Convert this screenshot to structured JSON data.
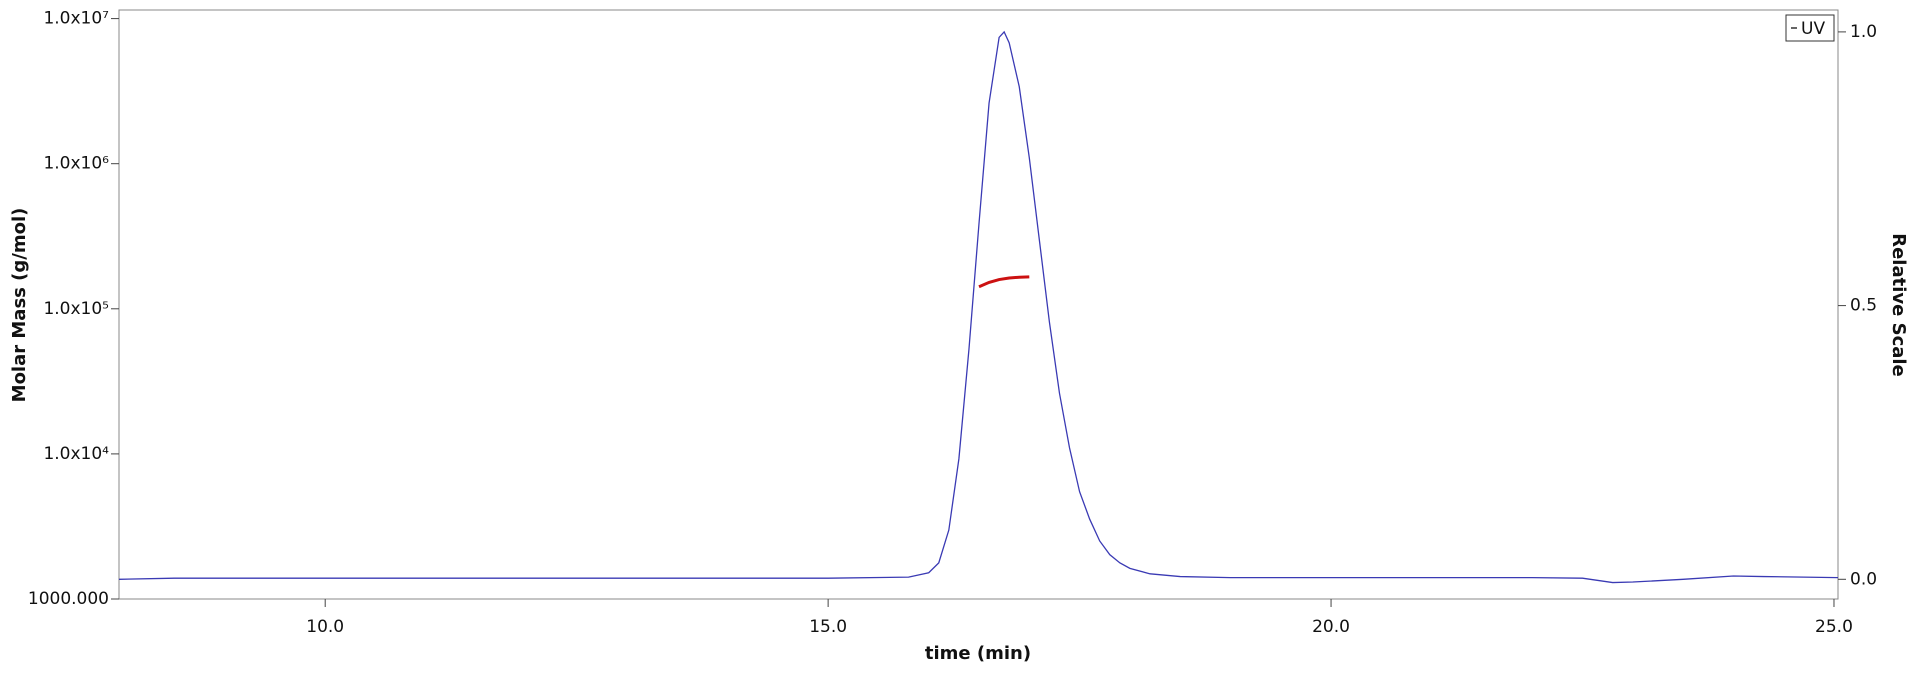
{
  "chart_data": {
    "type": "line",
    "xlabel": "time (min)",
    "ylabel": "Molar Mass (g/mol)",
    "y2label": "Relative Scale",
    "xlim": [
      7.95,
      25.04
    ],
    "xticks": [
      {
        "value": 10,
        "label": "10.0"
      },
      {
        "value": 15,
        "label": "15.0"
      },
      {
        "value": 20,
        "label": "20.0"
      },
      {
        "value": 25,
        "label": "25.0"
      }
    ],
    "ylim": [
      1000,
      11460000
    ],
    "ylog": true,
    "yticks": [
      {
        "value": 1000,
        "label": "1000.000"
      },
      {
        "value": 10000,
        "label": "1.0x10⁴"
      },
      {
        "value": 100000,
        "label": "1.0x10⁵"
      },
      {
        "value": 1000000,
        "label": "1.0x10⁶"
      },
      {
        "value": 10000000,
        "label": "1.0x10⁷"
      }
    ],
    "y2lim": [
      -0.036,
      1.04
    ],
    "y2ticks": [
      {
        "value": 0,
        "label": "0.0"
      },
      {
        "value": 0.5,
        "label": "0.5"
      },
      {
        "value": 1,
        "label": "1.0"
      }
    ],
    "legend": "upper right",
    "series": [
      {
        "name": "UV",
        "color": "#3a3ab4",
        "axis": "y2",
        "x": [
          7.95,
          8.5,
          15.0,
          15.8,
          16.0,
          16.1,
          16.2,
          16.3,
          16.4,
          16.5,
          16.6,
          16.7,
          16.75,
          16.8,
          16.9,
          17.0,
          17.1,
          17.2,
          17.3,
          17.4,
          17.5,
          17.6,
          17.7,
          17.8,
          17.9,
          18.0,
          18.2,
          18.5,
          19.0,
          22.0,
          22.5,
          22.8,
          23.0,
          23.5,
          24.0,
          24.3,
          25.04
        ],
        "values": [
          0.0,
          0.002,
          0.002,
          0.004,
          0.012,
          0.03,
          0.09,
          0.22,
          0.42,
          0.65,
          0.87,
          0.99,
          1.0,
          0.98,
          0.9,
          0.77,
          0.62,
          0.47,
          0.34,
          0.24,
          0.16,
          0.11,
          0.07,
          0.045,
          0.03,
          0.02,
          0.01,
          0.005,
          0.003,
          0.003,
          0.002,
          -0.006,
          -0.005,
          0.0,
          0.006,
          0.005,
          0.003
        ]
      },
      {
        "color": "#cc1111",
        "axis": "y",
        "x": [
          16.5,
          16.6,
          16.7,
          16.8,
          16.9,
          17.0
        ],
        "values": [
          142000,
          152000,
          159000,
          163000,
          165000,
          166000
        ]
      }
    ]
  }
}
